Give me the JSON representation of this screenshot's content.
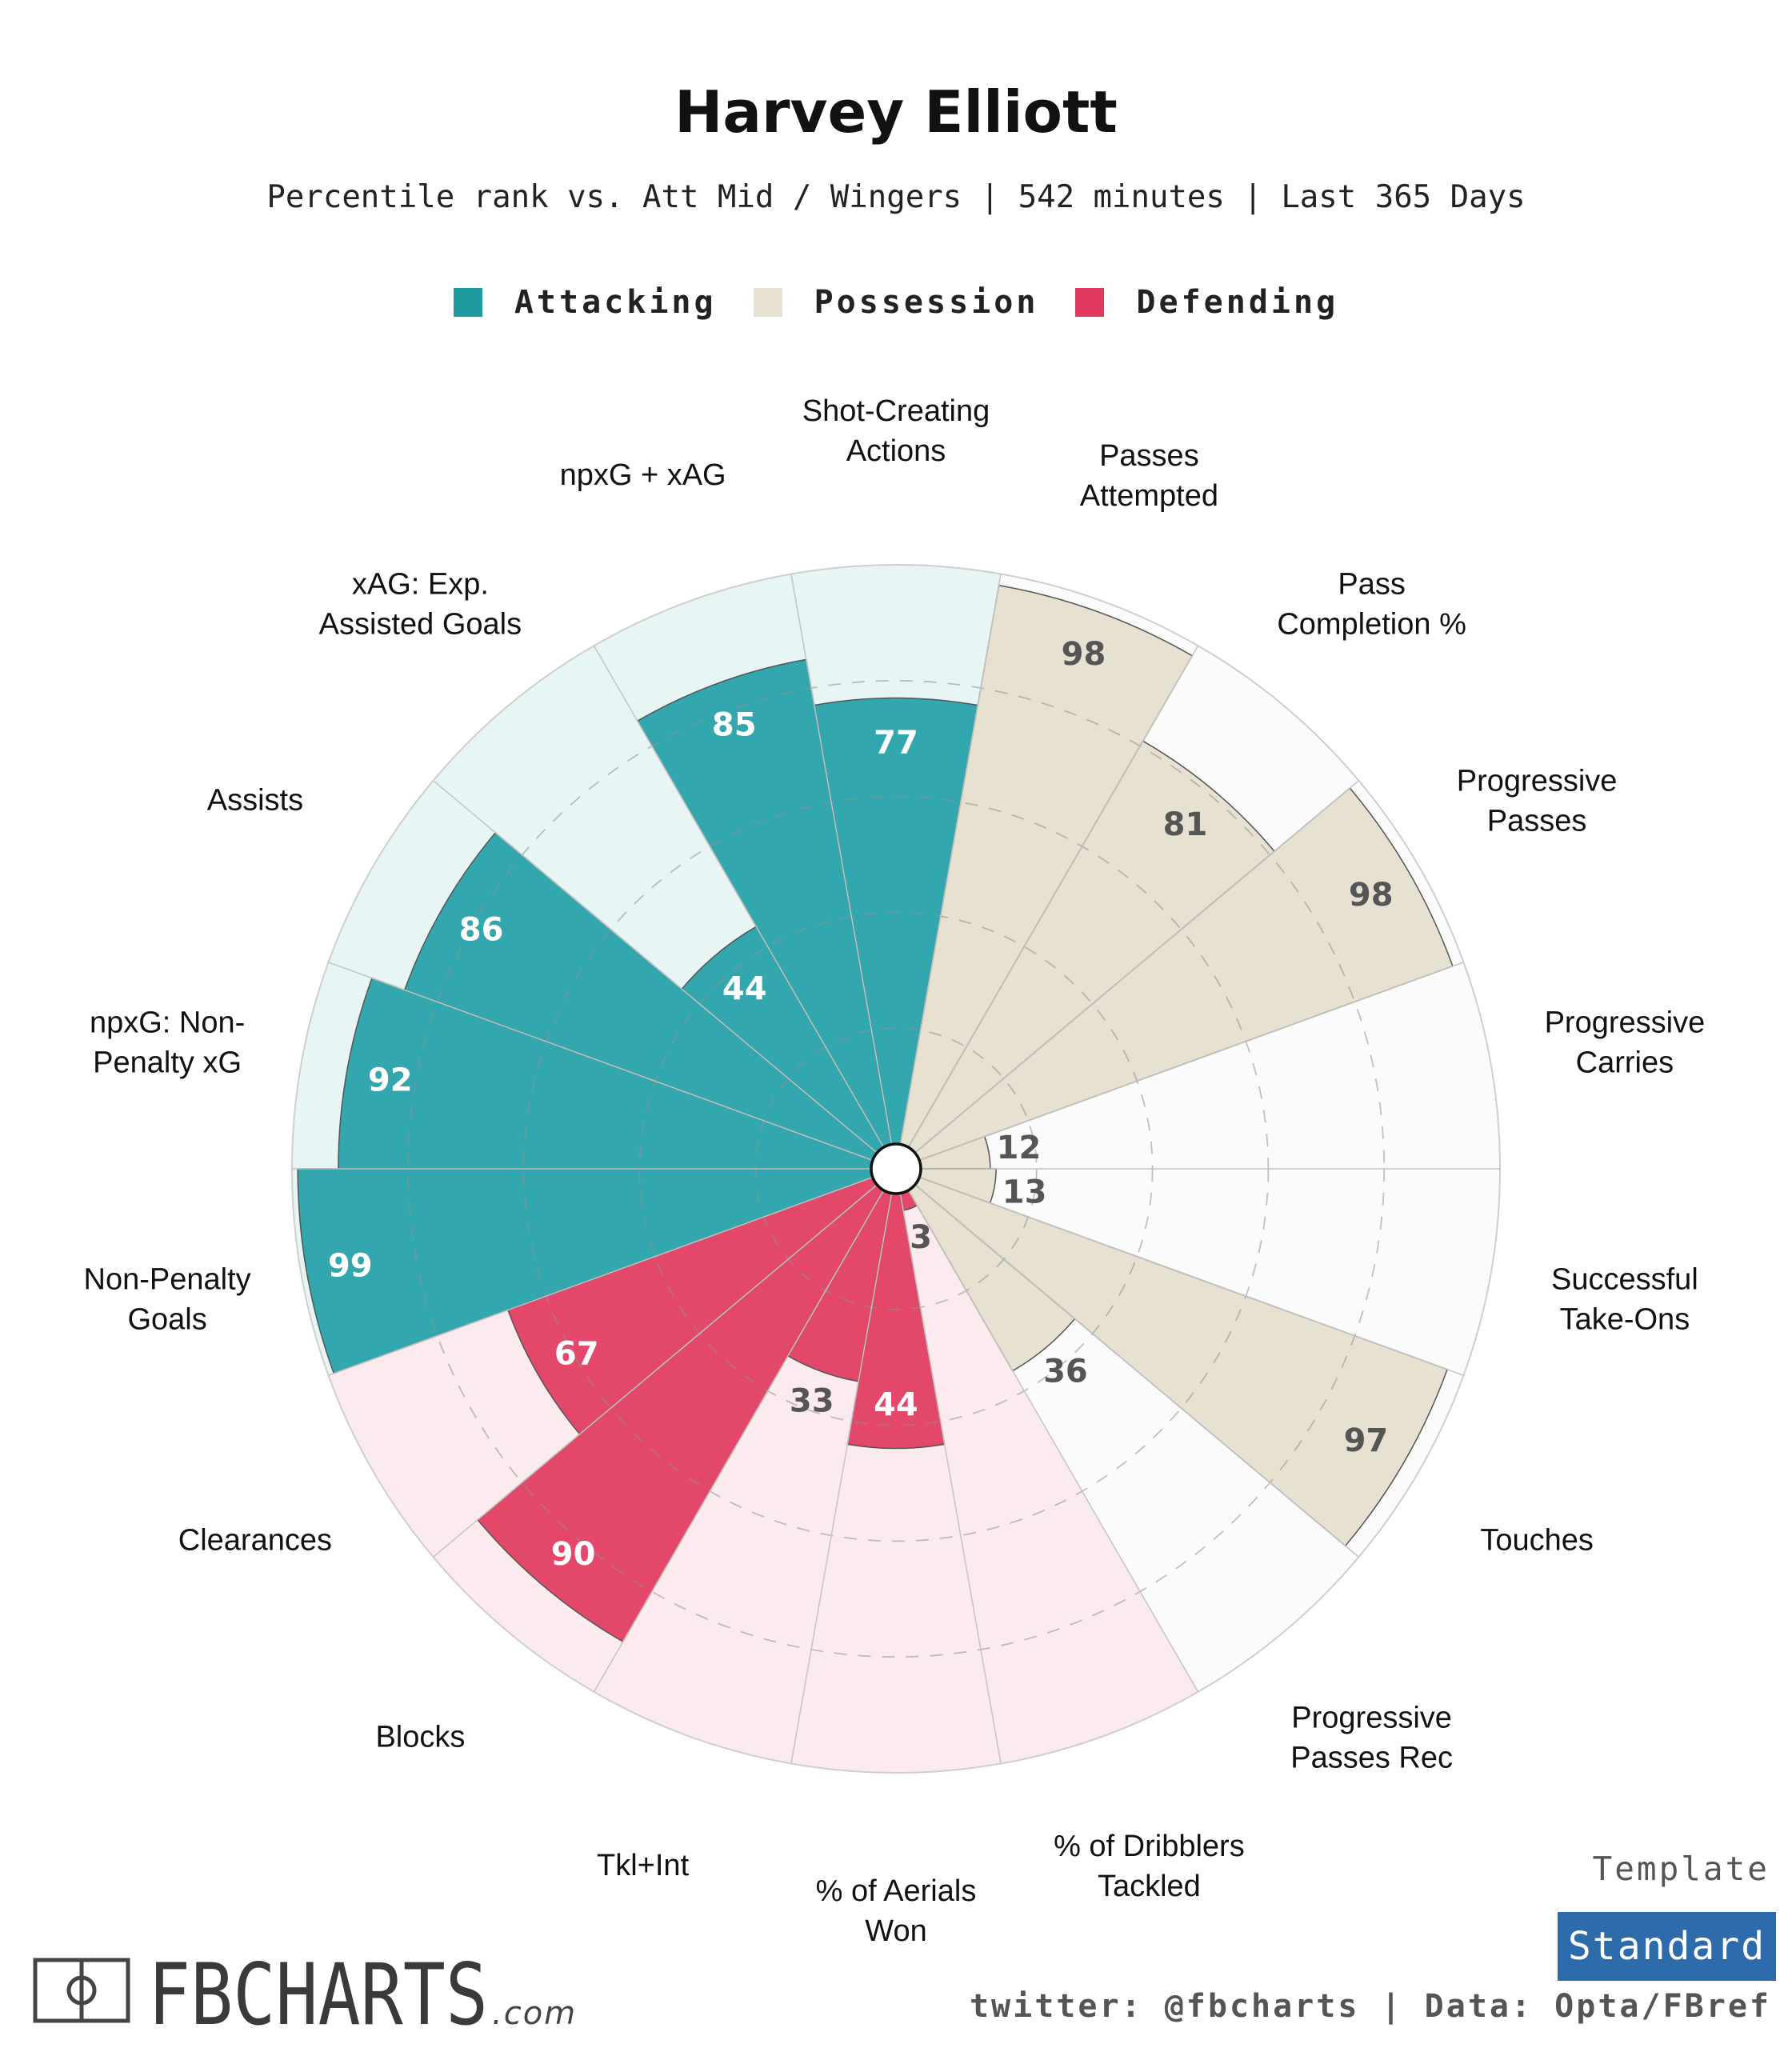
{
  "header": {
    "title": "Harvey Elliott",
    "subtitle": "Percentile rank vs. Att Mid / Wingers | 542 minutes | Last 365 Days"
  },
  "legend": [
    {
      "label": "Attacking",
      "color": "#1f9ba0"
    },
    {
      "label": "Possession",
      "color": "#e6e1d3"
    },
    {
      "label": "Defending",
      "color": "#e03b5f"
    }
  ],
  "colors": {
    "attacking_fill": "#32a8ae",
    "attacking_bg": "#e8f5f5",
    "possession_fill": "#e7e1d1",
    "possession_bg": "#fbfbfb",
    "defending_fill": "#e3476a",
    "defending_bg": "#fbebee",
    "white_value": "#ffffff",
    "dark_value": "#555555",
    "template_box": "#2d6bab"
  },
  "chart_data": {
    "type": "radial-bar",
    "rlim": [
      0,
      100
    ],
    "grid_rings": [
      20,
      40,
      60,
      80
    ],
    "categories": [
      "Shot-Creating Actions",
      "Passes Attempted",
      "Pass Completion %",
      "Progressive Passes",
      "Progressive Carries",
      "Successful Take-Ons",
      "Touches",
      "Progressive Passes Rec",
      "% of Dribblers Tackled",
      "% of Aerials Won",
      "Tkl+Int",
      "Blocks",
      "Clearances",
      "Non-Penalty Goals",
      "npxG: Non-Penalty xG",
      "Assists",
      "xAG: Exp. Assisted Goals",
      "npxG + xAG"
    ],
    "values": [
      77,
      98,
      81,
      98,
      12,
      13,
      97,
      36,
      3,
      44,
      33,
      90,
      67,
      99,
      92,
      86,
      44,
      85
    ],
    "groups": [
      "Attacking",
      "Possession",
      "Possession",
      "Possession",
      "Possession",
      "Possession",
      "Possession",
      "Possession",
      "Defending",
      "Defending",
      "Defending",
      "Defending",
      "Defending",
      "Attacking",
      "Attacking",
      "Attacking",
      "Attacking",
      "Attacking"
    ]
  },
  "axis_labels": [
    {
      "line1": "Shot-Creating",
      "line2": "Actions"
    },
    {
      "line1": "Passes",
      "line2": "Attempted"
    },
    {
      "line1": "Pass",
      "line2": "Completion %"
    },
    {
      "line1": "Progressive",
      "line2": "Passes"
    },
    {
      "line1": "Progressive",
      "line2": "Carries"
    },
    {
      "line1": "Successful",
      "line2": "Take-Ons"
    },
    {
      "line1": "Touches",
      "line2": ""
    },
    {
      "line1": "Progressive",
      "line2": "Passes Rec"
    },
    {
      "line1": "% of Dribblers",
      "line2": "Tackled"
    },
    {
      "line1": "% of Aerials",
      "line2": "Won"
    },
    {
      "line1": "Tkl+Int",
      "line2": ""
    },
    {
      "line1": "Blocks",
      "line2": ""
    },
    {
      "line1": "Clearances",
      "line2": ""
    },
    {
      "line1": "Non-Penalty",
      "line2": "Goals"
    },
    {
      "line1": "npxG: Non-",
      "line2": "Penalty xG"
    },
    {
      "line1": "Assists",
      "line2": ""
    },
    {
      "line1": "xAG: Exp.",
      "line2": "Assisted Goals"
    },
    {
      "line1": "npxG + xAG",
      "line2": ""
    }
  ],
  "branding": {
    "logo_text": "FBCHARTS",
    "logo_suffix": ".com",
    "template_label": "Template",
    "template_value": "Standard",
    "credit": "twitter: @fbcharts | Data: Opta/FBref"
  }
}
